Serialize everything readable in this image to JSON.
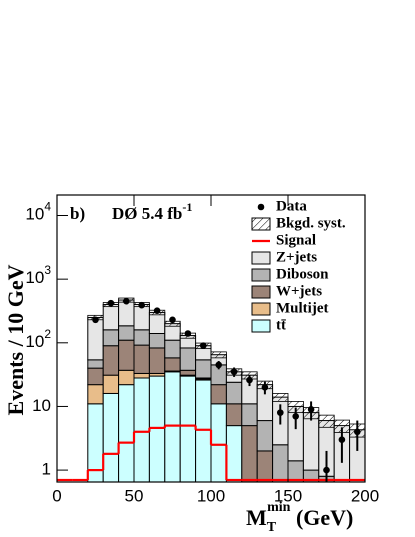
{
  "chart_data": {
    "type": "histogram",
    "panel_label": "b)",
    "annotation": {
      "text": "DØ 5.4 fb",
      "sup": "-1"
    },
    "y_label": "Events / 10 GeV",
    "x_label": {
      "main": "M",
      "sub": "T",
      "sup": "min",
      "unit": " (GeV)"
    },
    "log_y": true,
    "bins": [
      0,
      10,
      20,
      30,
      40,
      50,
      60,
      70,
      80,
      90,
      100,
      110,
      120,
      130,
      140,
      150,
      160,
      170,
      180,
      190,
      200
    ],
    "xlim": [
      0,
      200
    ],
    "xticks": [
      0,
      50,
      100,
      150,
      200
    ],
    "ylim": [
      0.65,
      21000
    ],
    "yticks": [
      1,
      10,
      {
        "value": 100,
        "label": "10^2"
      },
      {
        "value": 1000,
        "label": "10^3"
      },
      {
        "value": 10000,
        "label": "10^4"
      }
    ],
    "series": [
      {
        "name": "tt̄",
        "color": "#ccffff",
        "values": [
          0,
          0,
          11,
          16,
          22,
          28,
          30,
          35,
          30,
          26,
          11,
          5,
          0,
          0,
          0,
          0,
          0,
          0,
          0,
          0
        ]
      },
      {
        "name": "Multijet",
        "color": "#e8bd8a",
        "values": [
          0,
          0,
          11,
          15,
          15,
          5,
          3,
          1,
          1,
          1,
          0,
          0,
          0,
          0,
          0,
          0,
          0,
          0,
          0,
          0
        ]
      },
      {
        "name": "W+jets",
        "color": "#9c8478",
        "values": [
          0,
          0,
          18,
          59,
          73,
          59,
          50,
          22,
          6,
          1,
          11,
          6,
          5,
          2,
          0,
          0,
          0,
          0,
          0,
          0
        ]
      },
      {
        "name": "Diboson",
        "color": "#b3b3b3",
        "values": [
          0,
          0,
          14,
          70,
          75,
          68,
          57,
          52,
          46,
          26,
          23,
          13,
          6,
          4,
          2.5,
          1.4,
          1,
          0.8,
          0.6,
          0.5
        ]
      },
      {
        "name": "Z+jets",
        "color": "#e6e6e6",
        "values": [
          0,
          0,
          196,
          240,
          285,
          240,
          160,
          90,
          47,
          36,
          20,
          11,
          20,
          16,
          11.5,
          8.6,
          7,
          5.2,
          4.4,
          3.8
        ]
      }
    ],
    "syst": {
      "name": "Bkgd. syst.",
      "values": [
        0,
        0,
        20,
        30,
        35,
        30,
        25,
        18,
        12,
        9,
        7,
        4,
        4,
        3,
        2,
        2,
        1.6,
        1.3,
        1.1,
        1
      ]
    },
    "signal": {
      "name": "Signal",
      "color": "#ff0000",
      "values": [
        0,
        0,
        1.0,
        1.8,
        2.7,
        4,
        4.6,
        5,
        5,
        4.3,
        2.5,
        0,
        0,
        0,
        0,
        0,
        0,
        0,
        0,
        0
      ]
    },
    "data": {
      "name": "Data",
      "color": "#000000",
      "values": [
        null,
        null,
        230,
        420,
        450,
        390,
        320,
        230,
        140,
        90,
        45,
        35,
        26,
        20,
        8,
        7,
        9,
        1,
        3,
        4
      ],
      "errors": [
        null,
        null,
        15,
        20,
        21,
        20,
        18,
        15,
        12,
        9.5,
        6.7,
        5.9,
        5.1,
        4.5,
        2.8,
        2.6,
        3,
        1,
        1.7,
        2
      ]
    }
  }
}
